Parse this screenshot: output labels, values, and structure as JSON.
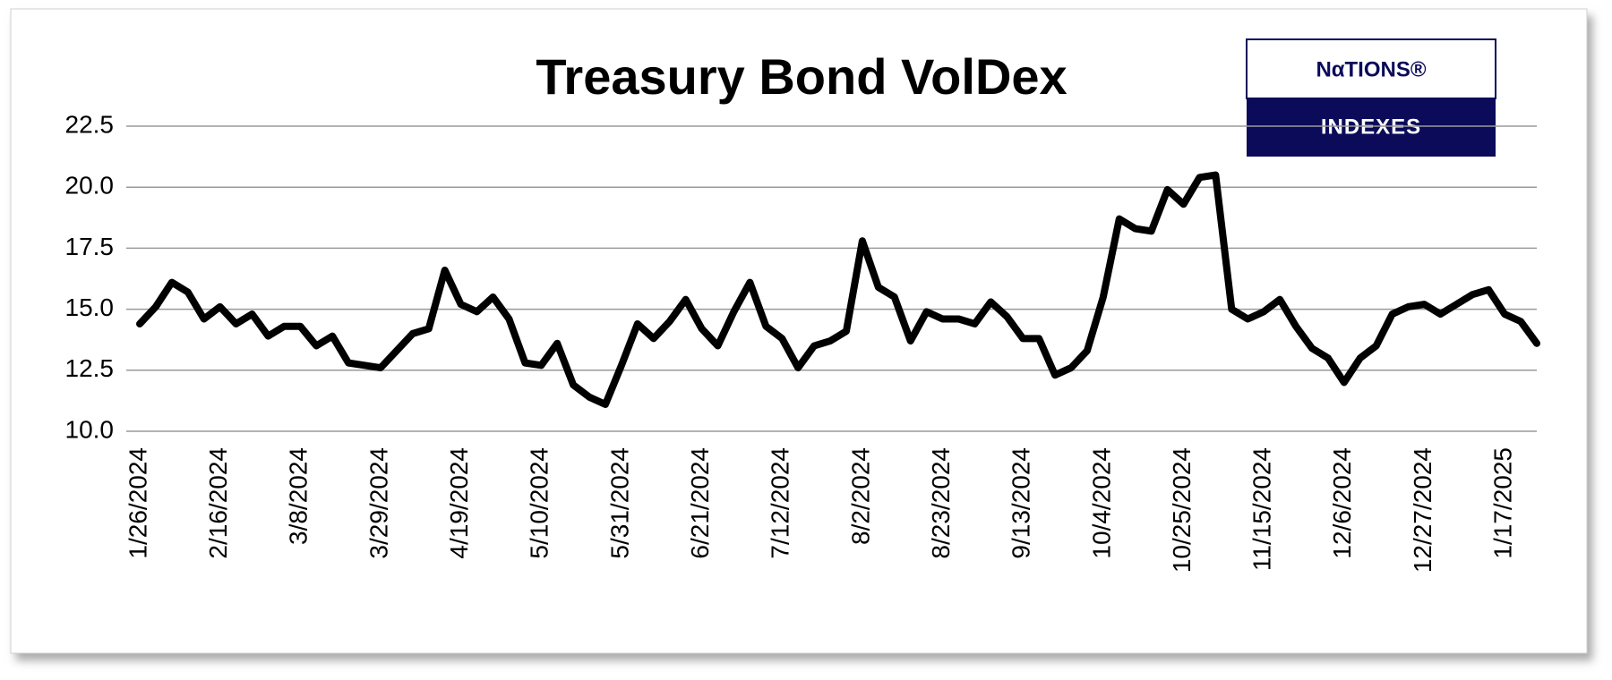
{
  "logo": {
    "top": "NαTIONS®",
    "bottom": "INDEXES"
  },
  "chart_data": {
    "type": "line",
    "title": "Treasury Bond  VolDex",
    "categories": [
      "1/26/2024",
      null,
      null,
      null,
      null,
      "2/16/2024",
      null,
      null,
      null,
      null,
      "3/8/2024",
      null,
      null,
      null,
      null,
      "3/29/2024",
      null,
      null,
      null,
      null,
      "4/19/2024",
      null,
      null,
      null,
      null,
      "5/10/2024",
      null,
      null,
      null,
      null,
      "5/31/2024",
      null,
      null,
      null,
      null,
      "6/21/2024",
      null,
      null,
      null,
      null,
      "7/12/2024",
      null,
      null,
      null,
      null,
      "8/2/2024",
      null,
      null,
      null,
      null,
      "8/23/2024",
      null,
      null,
      null,
      null,
      "9/13/2024",
      null,
      null,
      null,
      null,
      "10/4/2024",
      null,
      null,
      null,
      null,
      "10/25/2024",
      null,
      null,
      null,
      null,
      "11/15/2024",
      null,
      null,
      null,
      null,
      "12/6/2024",
      null,
      null,
      null,
      null,
      "12/27/2024",
      null,
      null,
      null,
      null,
      "1/17/2025",
      null,
      null
    ],
    "series": [
      {
        "name": "Treasury Bond VolDex",
        "color": "#000000",
        "values": [
          14.4,
          15.1,
          16.1,
          15.7,
          14.6,
          15.1,
          14.4,
          14.8,
          13.9,
          14.3,
          14.3,
          13.5,
          13.9,
          12.8,
          12.7,
          12.6,
          13.3,
          14.0,
          14.2,
          16.6,
          15.2,
          14.9,
          15.5,
          14.6,
          12.8,
          12.7,
          13.6,
          11.9,
          11.4,
          11.1,
          12.7,
          14.4,
          13.8,
          14.5,
          15.4,
          14.2,
          13.5,
          14.9,
          16.1,
          14.3,
          13.8,
          12.6,
          13.5,
          13.7,
          14.1,
          17.8,
          15.9,
          15.5,
          13.7,
          14.9,
          14.6,
          14.6,
          14.4,
          15.3,
          14.7,
          13.8,
          13.8,
          12.3,
          12.6,
          13.3,
          15.5,
          18.7,
          18.3,
          18.2,
          19.9,
          19.3,
          20.4,
          20.5,
          15.0,
          14.6,
          14.9,
          15.4,
          14.3,
          13.4,
          13.0,
          12.0,
          13.0,
          13.5,
          14.8,
          15.1,
          15.2,
          14.8,
          15.2,
          15.6,
          15.8,
          14.8,
          14.5,
          13.6
        ]
      }
    ],
    "ylim": [
      10,
      22.5
    ],
    "yticks": [
      {
        "value": 10,
        "label": "10.0"
      },
      {
        "value": 12.5,
        "label": "12.5"
      },
      {
        "value": 15,
        "label": "15.0"
      },
      {
        "value": 17.5,
        "label": "17.5"
      },
      {
        "value": 20,
        "label": "20.0"
      },
      {
        "value": 22.5,
        "label": "22.5"
      }
    ],
    "grid": true
  }
}
